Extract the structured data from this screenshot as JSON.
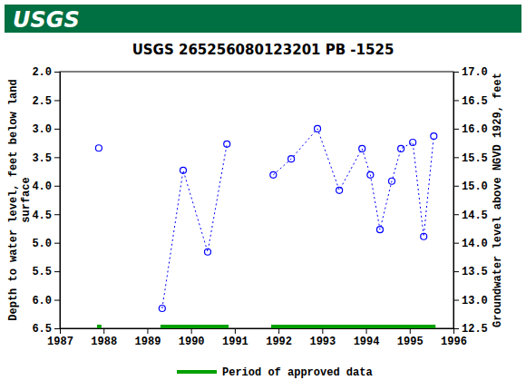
{
  "header": {
    "logo": "USGS"
  },
  "chart_data": {
    "type": "line",
    "title": "USGS 265256080123201 PB -1525",
    "ylabel": [
      "Depth to water level, feet below land",
      "surface"
    ],
    "y2label": "Groundwater level above NGVD 1929, feet",
    "x": [
      1987.89,
      null,
      1989.34,
      1989.82,
      1990.38,
      1990.82,
      null,
      1991.88,
      1992.29,
      1992.89,
      1993.39,
      1993.91,
      1994.1,
      1994.32,
      1994.59,
      1994.8,
      1995.07,
      1995.32,
      1995.55
    ],
    "series": [
      {
        "color": "#0000ff",
        "marker": "circle",
        "line_style": "dotted",
        "values": [
          3.34,
          null,
          6.15,
          3.73,
          5.16,
          3.27,
          null,
          3.81,
          3.53,
          3.0,
          4.08,
          3.35,
          3.81,
          4.77,
          3.92,
          3.35,
          3.24,
          4.89,
          3.13
        ]
      }
    ],
    "approved_periods": {
      "name": "Period of approved data",
      "color": "#00a000",
      "ranges": [
        [
          1987.85,
          1987.95
        ],
        [
          1989.3,
          1990.86
        ],
        [
          1991.83,
          1995.59
        ]
      ]
    },
    "xlim": [
      1987,
      1996
    ],
    "xticks": [
      1987,
      1988,
      1989,
      1990,
      1991,
      1992,
      1993,
      1994,
      1995,
      1996
    ],
    "ylim": [
      6.5,
      2.0
    ],
    "yticks": [
      {
        "value": 2,
        "label": "2.0"
      },
      {
        "value": 2.5,
        "label": "2.5"
      },
      {
        "value": 3,
        "label": "3.0"
      },
      {
        "value": 3.5,
        "label": "3.5"
      },
      {
        "value": 4,
        "label": "4.0"
      },
      {
        "value": 4.5,
        "label": "4.5"
      },
      {
        "value": 5,
        "label": "5.0"
      },
      {
        "value": 5.5,
        "label": "5.5"
      },
      {
        "value": 6,
        "label": "6.0"
      },
      {
        "value": 6.5,
        "label": "6.5"
      }
    ],
    "y2lim": [
      12.5,
      17.0
    ],
    "y2ticks": [
      {
        "value": 17,
        "label": "17.0"
      },
      {
        "value": 16.5,
        "label": "16.5"
      },
      {
        "value": 16,
        "label": "16.0"
      },
      {
        "value": 15.5,
        "label": "15.5"
      },
      {
        "value": 15,
        "label": "15.0"
      },
      {
        "value": 14.5,
        "label": "14.5"
      },
      {
        "value": 14,
        "label": "14.0"
      },
      {
        "value": 13.5,
        "label": "13.5"
      },
      {
        "value": 13,
        "label": "13.0"
      },
      {
        "value": 12.5,
        "label": "12.5"
      }
    ],
    "legend": "bottom",
    "grid": false
  }
}
